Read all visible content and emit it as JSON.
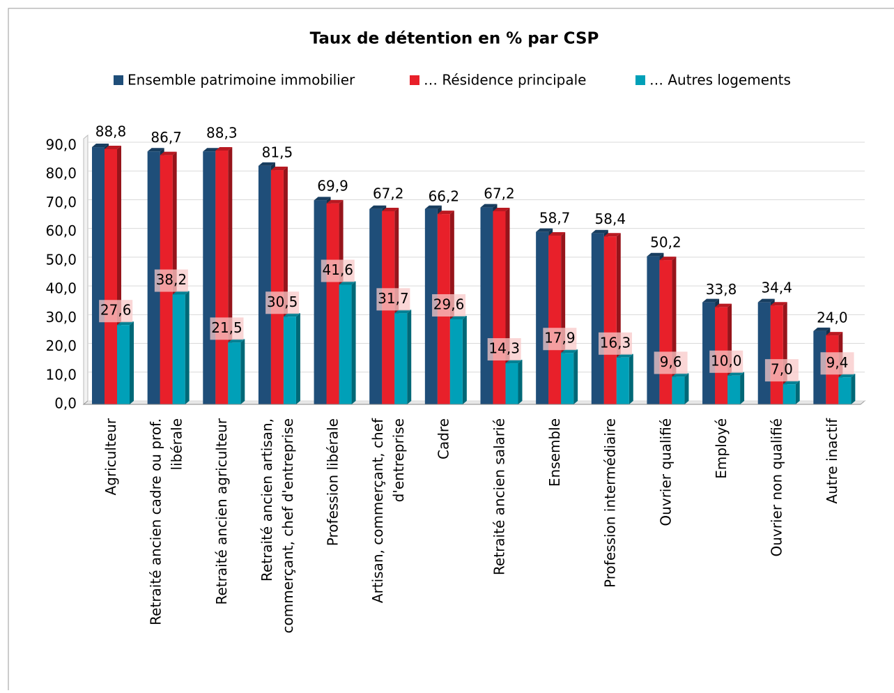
{
  "chart_data": {
    "type": "bar",
    "title": "Taux de détention en % par CSP",
    "categories": [
      "Agriculteur",
      "Retraité ancien cadre ou prof.\nlibérale",
      "Retraité ancien agriculteur",
      "Retraité ancien artisan,\ncommerçant, chef d'entreprise",
      "Profession libérale",
      "Artisan, commerçant, chef\nd'entreprise",
      "Cadre",
      "Retraité ancien salarié",
      "Ensemble",
      "Profession intermédiaire",
      "Ouvrier qualifié",
      "Employé",
      "Ouvrier non qualifié",
      "Autre inactif"
    ],
    "series": [
      {
        "name": "Ensemble patrimoine immobilier",
        "color": "#1f4e79",
        "values": [
          89.5,
          88,
          88,
          83,
          71,
          68,
          68,
          68.5,
          60,
          59.5,
          51.5,
          35.5,
          35.5,
          25.5
        ]
      },
      {
        "name": "… Résidence principale",
        "color": "#e8202a",
        "values": [
          88.8,
          86.7,
          88.3,
          81.5,
          69.9,
          67.2,
          66.2,
          67.2,
          58.7,
          58.4,
          50.2,
          33.8,
          34.4,
          24.0
        ],
        "value_labels": [
          "88,8",
          "86,7",
          "88,3",
          "81,5",
          "69,9",
          "67,2",
          "66,2",
          "67,2",
          "58,7",
          "58,4",
          "50,2",
          "33,8",
          "34,4",
          "24,0"
        ]
      },
      {
        "name": "… Autres logements",
        "color": "#00a0b8",
        "values": [
          27.6,
          38.2,
          21.5,
          30.5,
          41.6,
          31.7,
          29.6,
          14.3,
          17.9,
          16.3,
          9.6,
          10.0,
          7.0,
          9.4
        ],
        "value_labels": [
          "27,6",
          "38,2",
          "21,5",
          "30,5",
          "41,6",
          "31,7",
          "29,6",
          "14,3",
          "17,9",
          "16,3",
          "9,6",
          "10,0",
          "7,0",
          "9,4"
        ]
      }
    ],
    "ylim": [
      0,
      90
    ],
    "yticks": [
      {
        "value": 0,
        "label": "0,0"
      },
      {
        "value": 10,
        "label": "10,0"
      },
      {
        "value": 20,
        "label": "20,0"
      },
      {
        "value": 30,
        "label": "30,0"
      },
      {
        "value": 40,
        "label": "40,0"
      },
      {
        "value": 50,
        "label": "50,0"
      },
      {
        "value": 60,
        "label": "60,0"
      },
      {
        "value": 70,
        "label": "70,0"
      },
      {
        "value": 80,
        "label": "80,0"
      },
      {
        "value": 90,
        "label": "90,0"
      }
    ],
    "grid": true
  }
}
